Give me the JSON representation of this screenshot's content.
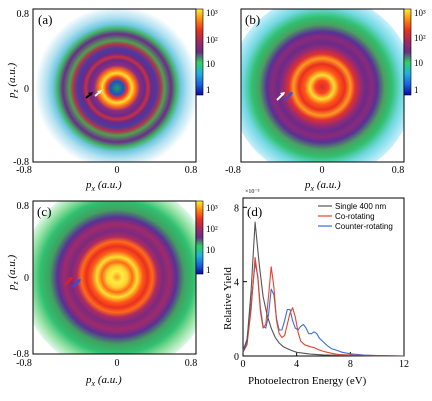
{
  "panels": {
    "a": {
      "label": "(a)"
    },
    "b": {
      "label": "(b)"
    },
    "c": {
      "label": "(c)"
    },
    "d": {
      "label": "(d)"
    }
  },
  "axes": {
    "pz": "p",
    "pz_sub": "z",
    "px": "p",
    "px_sub": "x",
    "au": "(a.u.)",
    "ticks_main": [
      "-0.8",
      "0",
      "0.8"
    ]
  },
  "colorbars": {
    "a": [
      "10³",
      "10²",
      "10",
      "1"
    ],
    "b": [
      "10³",
      "10²",
      "10",
      "1"
    ],
    "c": [
      "10³",
      "10²",
      "10",
      "1"
    ]
  },
  "colors": {
    "single": "#555555",
    "co": "#e8402a",
    "counter": "#3a6fd8",
    "arrow_red": "#e02020",
    "arrow_white": "#ffffff",
    "arrow_blue": "#3050e0",
    "arrow_black": "#000000"
  },
  "chart_data": [
    {
      "type": "heatmap",
      "panel": "(a)",
      "xlabel": "px (a.u.)",
      "ylabel": "pz (a.u.)",
      "xlim": [
        -0.8,
        0.8
      ],
      "ylim": [
        -0.8,
        0.8
      ],
      "colorbar": [
        "1",
        "10",
        "10²",
        "10³"
      ]
    },
    {
      "type": "heatmap",
      "panel": "(b)",
      "xlabel": "px (a.u.)",
      "xlim": [
        -0.8,
        0.8
      ],
      "ylim": [
        -0.8,
        0.8
      ],
      "colorbar": [
        "1",
        "10",
        "10²",
        "10³"
      ]
    },
    {
      "type": "heatmap",
      "panel": "(c)",
      "xlabel": "px (a.u.)",
      "ylabel": "pz (a.u.)",
      "xlim": [
        -0.8,
        0.8
      ],
      "ylim": [
        -0.8,
        0.8
      ],
      "colorbar": [
        "1",
        "10",
        "10²",
        "10³"
      ]
    },
    {
      "type": "line",
      "panel": "(d)",
      "xlabel": "Photoelectron Energy (eV)",
      "ylabel": "Relative Yield",
      "y_exponent": "×10⁻⁵",
      "xlim": [
        0,
        12
      ],
      "ylim": [
        0,
        8.5
      ],
      "xticks": [
        "0",
        "4",
        "8",
        "12"
      ],
      "yticks": [
        "0",
        "4",
        "8"
      ],
      "legend_position": "top-right",
      "series": [
        {
          "name": "Single 400 nm",
          "color": "#555555",
          "points": [
            [
              0,
              0.2
            ],
            [
              0.3,
              0.8
            ],
            [
              0.6,
              3.5
            ],
            [
              0.9,
              7.2
            ],
            [
              1.2,
              5.0
            ],
            [
              1.5,
              3.2
            ],
            [
              1.8,
              2.2
            ],
            [
              2.1,
              1.5
            ],
            [
              2.4,
              1.0
            ],
            [
              2.7,
              0.7
            ],
            [
              3.0,
              0.5
            ],
            [
              3.3,
              0.4
            ],
            [
              3.6,
              0.3
            ],
            [
              4.0,
              0.2
            ],
            [
              4.5,
              0.15
            ],
            [
              5,
              0.1
            ],
            [
              6,
              0.06
            ],
            [
              7,
              0.04
            ],
            [
              8,
              0.02
            ],
            [
              10,
              0.01
            ],
            [
              12,
              0.0
            ]
          ]
        },
        {
          "name": "Co-rotating",
          "color": "#e8402a",
          "points": [
            [
              0,
              0.2
            ],
            [
              0.3,
              0.6
            ],
            [
              0.6,
              2.5
            ],
            [
              0.9,
              5.3
            ],
            [
              1.1,
              4.2
            ],
            [
              1.3,
              2.4
            ],
            [
              1.5,
              1.5
            ],
            [
              1.7,
              1.7
            ],
            [
              1.9,
              3.2
            ],
            [
              2.1,
              4.8
            ],
            [
              2.3,
              3.7
            ],
            [
              2.5,
              1.9
            ],
            [
              2.7,
              1.2
            ],
            [
              2.9,
              1.0
            ],
            [
              3.1,
              1.1
            ],
            [
              3.3,
              1.7
            ],
            [
              3.5,
              2.3
            ],
            [
              3.7,
              2.6
            ],
            [
              3.9,
              2.1
            ],
            [
              4.1,
              1.3
            ],
            [
              4.3,
              0.8
            ],
            [
              4.6,
              0.6
            ],
            [
              5.0,
              0.5
            ],
            [
              5.3,
              0.45
            ],
            [
              5.6,
              0.35
            ],
            [
              6.0,
              0.25
            ],
            [
              6.4,
              0.18
            ],
            [
              6.8,
              0.12
            ],
            [
              7.2,
              0.08
            ],
            [
              8,
              0.05
            ],
            [
              9,
              0.02
            ],
            [
              10,
              0.01
            ],
            [
              12,
              0.0
            ]
          ]
        },
        {
          "name": "Counter-rotating",
          "color": "#3a6fd8",
          "points": [
            [
              0,
              0.3
            ],
            [
              0.3,
              0.9
            ],
            [
              0.6,
              2.8
            ],
            [
              0.9,
              5.0
            ],
            [
              1.1,
              4.3
            ],
            [
              1.3,
              2.6
            ],
            [
              1.5,
              1.6
            ],
            [
              1.7,
              1.5
            ],
            [
              1.9,
              2.2
            ],
            [
              2.1,
              3.6
            ],
            [
              2.3,
              3.3
            ],
            [
              2.5,
              2.0
            ],
            [
              2.7,
              1.4
            ],
            [
              2.9,
              1.4
            ],
            [
              3.1,
              1.9
            ],
            [
              3.3,
              2.5
            ],
            [
              3.5,
              2.5
            ],
            [
              3.7,
              1.9
            ],
            [
              3.9,
              1.5
            ],
            [
              4.1,
              1.4
            ],
            [
              4.3,
              1.6
            ],
            [
              4.5,
              1.7
            ],
            [
              4.7,
              1.5
            ],
            [
              4.9,
              1.2
            ],
            [
              5.1,
              1.2
            ],
            [
              5.3,
              1.3
            ],
            [
              5.5,
              1.2
            ],
            [
              5.7,
              0.95
            ],
            [
              6.0,
              0.75
            ],
            [
              6.3,
              0.55
            ],
            [
              6.6,
              0.4
            ],
            [
              7.0,
              0.3
            ],
            [
              7.4,
              0.2
            ],
            [
              8,
              0.12
            ],
            [
              9,
              0.05
            ],
            [
              10,
              0.02
            ],
            [
              12,
              0.0
            ]
          ]
        }
      ]
    }
  ]
}
